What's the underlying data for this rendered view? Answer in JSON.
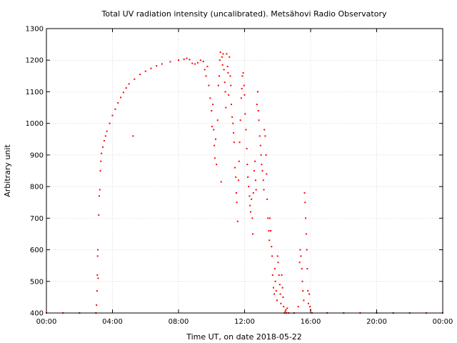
{
  "chart_data": {
    "type": "scatter",
    "title": "Total UV radiation intensity (uncalibrated). Metsähovi Radio Observatory",
    "xlabel": "Time UT, on date 2018-05-22",
    "ylabel": "Arbitrary unit",
    "xlim": [
      "00:00",
      "24:00"
    ],
    "ylim": [
      400,
      1300
    ],
    "x_ticks": [
      "00:00",
      "04:00",
      "08:00",
      "12:00",
      "16:00",
      "20:00",
      "00:00"
    ],
    "y_ticks": [
      400,
      500,
      600,
      700,
      800,
      900,
      1000,
      1100,
      1200,
      1300
    ],
    "grid": true,
    "marker_color": "#ff0000",
    "series": [
      {
        "points": [
          [
            "00:00",
            400
          ],
          [
            "01:00",
            400
          ],
          [
            "02:00",
            400
          ],
          [
            "03:00",
            400
          ],
          [
            "03:02",
            425
          ],
          [
            "03:04",
            470
          ],
          [
            "03:05",
            520
          ],
          [
            "03:06",
            580
          ],
          [
            "03:07",
            600
          ],
          [
            "03:08",
            510
          ],
          [
            "03:10",
            710
          ],
          [
            "03:12",
            770
          ],
          [
            "03:14",
            790
          ],
          [
            "03:16",
            850
          ],
          [
            "03:18",
            880
          ],
          [
            "03:20",
            905
          ],
          [
            "03:25",
            925
          ],
          [
            "03:30",
            945
          ],
          [
            "03:35",
            960
          ],
          [
            "03:40",
            975
          ],
          [
            "03:50",
            1000
          ],
          [
            "04:00",
            1025
          ],
          [
            "04:10",
            1045
          ],
          [
            "04:20",
            1065
          ],
          [
            "04:30",
            1082
          ],
          [
            "04:40",
            1098
          ],
          [
            "04:50",
            1112
          ],
          [
            "05:00",
            1125
          ],
          [
            "05:15",
            960
          ],
          [
            "05:20",
            1140
          ],
          [
            "05:40",
            1155
          ],
          [
            "06:00",
            1165
          ],
          [
            "06:20",
            1174
          ],
          [
            "06:40",
            1182
          ],
          [
            "07:00",
            1188
          ],
          [
            "07:30",
            1195
          ],
          [
            "08:00",
            1200
          ],
          [
            "08:20",
            1203
          ],
          [
            "08:30",
            1206
          ],
          [
            "08:40",
            1202
          ],
          [
            "08:50",
            1190
          ],
          [
            "09:00",
            1188
          ],
          [
            "09:10",
            1192
          ],
          [
            "09:20",
            1200
          ],
          [
            "09:30",
            1196
          ],
          [
            "09:35",
            1170
          ],
          [
            "09:40",
            1150
          ],
          [
            "09:45",
            1180
          ],
          [
            "09:50",
            1120
          ],
          [
            "09:55",
            1080
          ],
          [
            "10:00",
            1040
          ],
          [
            "10:02",
            990
          ],
          [
            "10:05",
            1060
          ],
          [
            "10:08",
            980
          ],
          [
            "10:10",
            930
          ],
          [
            "10:12",
            890
          ],
          [
            "10:15",
            950
          ],
          [
            "10:18",
            870
          ],
          [
            "10:22",
            1010
          ],
          [
            "10:25",
            1120
          ],
          [
            "10:28",
            1150
          ],
          [
            "10:30",
            1200
          ],
          [
            "10:32",
            1225
          ],
          [
            "10:35",
            815
          ],
          [
            "10:38",
            1210
          ],
          [
            "10:40",
            1185
          ],
          [
            "10:42",
            1220
          ],
          [
            "10:45",
            1170
          ],
          [
            "10:48",
            1130
          ],
          [
            "10:50",
            1100
          ],
          [
            "10:52",
            1050
          ],
          [
            "10:55",
            1220
          ],
          [
            "10:58",
            1180
          ],
          [
            "11:00",
            1160
          ],
          [
            "11:02",
            1090
          ],
          [
            "11:05",
            1210
          ],
          [
            "11:08",
            1150
          ],
          [
            "11:10",
            1120
          ],
          [
            "11:12",
            1060
          ],
          [
            "11:15",
            1020
          ],
          [
            "11:18",
            1000
          ],
          [
            "11:20",
            970
          ],
          [
            "11:22",
            940
          ],
          [
            "11:25",
            860
          ],
          [
            "11:28",
            830
          ],
          [
            "11:30",
            780
          ],
          [
            "11:32",
            750
          ],
          [
            "11:35",
            690
          ],
          [
            "11:38",
            820
          ],
          [
            "11:40",
            880
          ],
          [
            "11:42",
            940
          ],
          [
            "11:45",
            1010
          ],
          [
            "11:48",
            1080
          ],
          [
            "11:50",
            1110
          ],
          [
            "11:52",
            1150
          ],
          [
            "11:55",
            1160
          ],
          [
            "11:58",
            1120
          ],
          [
            "12:00",
            1090
          ],
          [
            "12:02",
            1030
          ],
          [
            "12:05",
            980
          ],
          [
            "12:08",
            920
          ],
          [
            "12:10",
            870
          ],
          [
            "12:12",
            830
          ],
          [
            "12:15",
            800
          ],
          [
            "12:18",
            770
          ],
          [
            "12:20",
            740
          ],
          [
            "12:22",
            720
          ],
          [
            "12:25",
            760
          ],
          [
            "12:28",
            700
          ],
          [
            "12:30",
            650
          ],
          [
            "12:32",
            780
          ],
          [
            "12:35",
            850
          ],
          [
            "12:38",
            880
          ],
          [
            "12:40",
            820
          ],
          [
            "12:42",
            790
          ],
          [
            "12:45",
            1060
          ],
          [
            "12:48",
            1100
          ],
          [
            "12:50",
            1040
          ],
          [
            "12:52",
            1010
          ],
          [
            "12:55",
            960
          ],
          [
            "12:58",
            930
          ],
          [
            "13:00",
            900
          ],
          [
            "13:02",
            870
          ],
          [
            "13:05",
            850
          ],
          [
            "13:08",
            820
          ],
          [
            "13:10",
            790
          ],
          [
            "13:12",
            980
          ],
          [
            "13:15",
            960
          ],
          [
            "13:18",
            900
          ],
          [
            "13:20",
            840
          ],
          [
            "13:22",
            760
          ],
          [
            "13:25",
            700
          ],
          [
            "13:28",
            660
          ],
          [
            "13:30",
            630
          ],
          [
            "13:32",
            700
          ],
          [
            "13:35",
            660
          ],
          [
            "13:38",
            610
          ],
          [
            "13:40",
            580
          ],
          [
            "13:42",
            520
          ],
          [
            "13:45",
            480
          ],
          [
            "13:48",
            460
          ],
          [
            "13:50",
            540
          ],
          [
            "13:52",
            500
          ],
          [
            "13:55",
            470
          ],
          [
            "13:58",
            440
          ],
          [
            "14:00",
            580
          ],
          [
            "14:02",
            560
          ],
          [
            "14:05",
            520
          ],
          [
            "14:08",
            490
          ],
          [
            "14:10",
            460
          ],
          [
            "14:12",
            430
          ],
          [
            "14:15",
            520
          ],
          [
            "14:18",
            480
          ],
          [
            "14:20",
            450
          ],
          [
            "14:22",
            420
          ],
          [
            "14:25",
            400
          ],
          [
            "14:28",
            405
          ],
          [
            "14:30",
            410
          ],
          [
            "14:32",
            400
          ],
          [
            "14:35",
            415
          ],
          [
            "14:40",
            400
          ],
          [
            "15:00",
            400
          ],
          [
            "15:15",
            420
          ],
          [
            "15:20",
            560
          ],
          [
            "15:22",
            600
          ],
          [
            "15:25",
            580
          ],
          [
            "15:28",
            540
          ],
          [
            "15:30",
            500
          ],
          [
            "15:32",
            470
          ],
          [
            "15:35",
            440
          ],
          [
            "15:38",
            780
          ],
          [
            "15:40",
            750
          ],
          [
            "15:42",
            700
          ],
          [
            "15:44",
            650
          ],
          [
            "15:46",
            600
          ],
          [
            "15:48",
            540
          ],
          [
            "15:50",
            470
          ],
          [
            "15:52",
            430
          ],
          [
            "15:55",
            460
          ],
          [
            "15:58",
            420
          ],
          [
            "16:00",
            410
          ],
          [
            "16:05",
            400
          ],
          [
            "17:00",
            400
          ],
          [
            "18:00",
            400
          ],
          [
            "19:00",
            400
          ],
          [
            "20:00",
            400
          ],
          [
            "21:00",
            400
          ],
          [
            "22:00",
            400
          ],
          [
            "23:00",
            400
          ],
          [
            "24:00",
            400
          ]
        ]
      }
    ]
  }
}
